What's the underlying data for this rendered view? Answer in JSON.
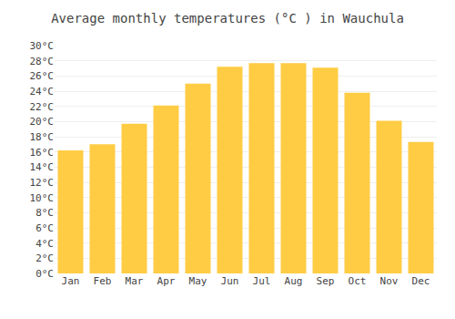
{
  "chart_data": {
    "type": "bar",
    "title": "Average monthly temperatures (°C ) in Wauchula",
    "categories": [
      "Jan",
      "Feb",
      "Mar",
      "Apr",
      "May",
      "Jun",
      "Jul",
      "Aug",
      "Sep",
      "Oct",
      "Nov",
      "Dec"
    ],
    "values": [
      16.2,
      17.0,
      19.7,
      22.1,
      25.0,
      27.2,
      27.7,
      27.7,
      27.1,
      23.8,
      20.1,
      17.3
    ],
    "color": "#FFCC44",
    "ylim": [
      0,
      30
    ],
    "yticks": [
      {
        "value": 0,
        "label": "0°C"
      },
      {
        "value": 2,
        "label": "2°C"
      },
      {
        "value": 4,
        "label": "4°C"
      },
      {
        "value": 6,
        "label": "6°C"
      },
      {
        "value": 8,
        "label": "8°C"
      },
      {
        "value": 10,
        "label": "10°C"
      },
      {
        "value": 12,
        "label": "12°C"
      },
      {
        "value": 14,
        "label": "14°C"
      },
      {
        "value": 16,
        "label": "16°C"
      },
      {
        "value": 18,
        "label": "18°C"
      },
      {
        "value": 20,
        "label": "20°C"
      },
      {
        "value": 22,
        "label": "22°C"
      },
      {
        "value": 24,
        "label": "24°C"
      },
      {
        "value": 26,
        "label": "26°C"
      },
      {
        "value": 28,
        "label": "28°C"
      },
      {
        "value": 30,
        "label": "30°C"
      }
    ],
    "grid": true
  }
}
